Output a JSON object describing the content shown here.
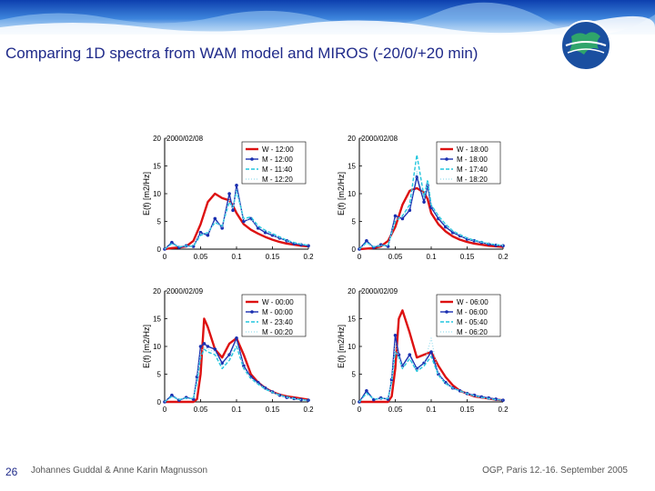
{
  "slide": {
    "title": "Comparing 1D spectra from WAM model and MIROS (-20/0/+20 min)",
    "page_number": "26",
    "authors": "Johannes Guddal & Anne Karin Magnusson",
    "conference": "OGP, Paris 12.-16. September 2005"
  },
  "colors": {
    "wam": "#dd1111",
    "miros0": "#1a2fb0",
    "miros_minus": "#22c6dd",
    "miros_plus": "#99ddee",
    "title": "#1f2a8a"
  },
  "chart_data": [
    {
      "type": "line",
      "date": "2000/02/08",
      "xlabel": "",
      "ylabel": "E(f) [m2/Hz]",
      "xlim": [
        0,
        0.2
      ],
      "ylim": [
        0,
        20
      ],
      "xticks": [
        "0",
        "0.05",
        "0.1",
        "0.15",
        "0.2"
      ],
      "yticks": [
        "0",
        "5",
        "10",
        "15",
        "20"
      ],
      "x": [
        0.0,
        0.01,
        0.02,
        0.03,
        0.04,
        0.05,
        0.06,
        0.07,
        0.08,
        0.09,
        0.095,
        0.1,
        0.11,
        0.12,
        0.13,
        0.14,
        0.15,
        0.16,
        0.17,
        0.18,
        0.19,
        0.2
      ],
      "series": [
        {
          "name": "W - 12:00",
          "values": [
            0,
            0.2,
            0.3,
            0.5,
            1.5,
            4.5,
            8.5,
            10.0,
            9.2,
            8.8,
            7.8,
            6.5,
            4.5,
            3.5,
            2.8,
            2.2,
            1.7,
            1.3,
            1.0,
            0.8,
            0.6,
            0.5
          ]
        },
        {
          "name": "M - 12:00",
          "values": [
            0,
            1.2,
            0.3,
            0.6,
            0.5,
            3.0,
            2.5,
            5.5,
            3.8,
            10.0,
            7.0,
            11.5,
            5.0,
            5.5,
            3.8,
            3.0,
            2.5,
            2.0,
            1.5,
            1.0,
            0.8,
            0.6
          ]
        },
        {
          "name": "M - 11:40",
          "values": [
            0,
            1.0,
            0.4,
            0.6,
            0.5,
            2.5,
            3.0,
            4.8,
            4.2,
            8.5,
            7.5,
            10.5,
            5.5,
            5.8,
            4.2,
            3.4,
            2.8,
            2.2,
            1.6,
            1.2,
            0.9,
            0.7
          ]
        },
        {
          "name": "M - 12:20",
          "values": [
            0,
            0.8,
            0.5,
            0.5,
            0.7,
            2.8,
            2.8,
            5.0,
            4.0,
            9.0,
            7.2,
            10.8,
            5.2,
            5.4,
            4.0,
            3.2,
            2.6,
            2.0,
            1.5,
            1.1,
            0.9,
            0.7
          ]
        }
      ]
    },
    {
      "type": "line",
      "date": "2000/02/08",
      "xlabel": "",
      "ylabel": "E(f) [m2/Hz]",
      "xlim": [
        0,
        0.2
      ],
      "ylim": [
        0,
        20
      ],
      "xticks": [
        "0",
        "0.05",
        "0.1",
        "0.15",
        "0.2"
      ],
      "yticks": [
        "0",
        "5",
        "10",
        "15",
        "20"
      ],
      "x": [
        0.0,
        0.01,
        0.02,
        0.03,
        0.04,
        0.05,
        0.06,
        0.07,
        0.08,
        0.09,
        0.095,
        0.1,
        0.11,
        0.12,
        0.13,
        0.14,
        0.15,
        0.16,
        0.17,
        0.18,
        0.19,
        0.2
      ],
      "series": [
        {
          "name": "W - 18:00",
          "values": [
            0,
            0.1,
            0.2,
            0.5,
            1.5,
            4.0,
            8.0,
            10.5,
            11.0,
            10.2,
            9.0,
            6.5,
            4.5,
            3.2,
            2.3,
            1.7,
            1.3,
            1.0,
            0.8,
            0.6,
            0.5,
            0.4
          ]
        },
        {
          "name": "M - 18:00",
          "values": [
            0,
            1.5,
            0.3,
            0.8,
            0.5,
            6.0,
            5.5,
            7.0,
            13.0,
            8.5,
            11.5,
            7.5,
            5.5,
            4.0,
            3.0,
            2.4,
            1.8,
            1.5,
            1.2,
            0.9,
            0.7,
            0.6
          ]
        },
        {
          "name": "M - 17:40",
          "values": [
            0,
            1.2,
            0.4,
            0.6,
            0.7,
            5.0,
            6.0,
            8.0,
            17.0,
            9.5,
            12.5,
            8.0,
            6.0,
            4.5,
            3.3,
            2.6,
            2.0,
            1.6,
            1.3,
            1.0,
            0.8,
            0.7
          ]
        },
        {
          "name": "M - 18:20",
          "values": [
            0,
            1.0,
            0.5,
            0.7,
            0.6,
            5.5,
            5.8,
            7.5,
            14.0,
            9.0,
            12.0,
            7.8,
            5.8,
            4.3,
            3.2,
            2.5,
            1.9,
            1.5,
            1.2,
            1.0,
            0.8,
            0.6
          ]
        }
      ]
    },
    {
      "type": "line",
      "date": "2000/02/09",
      "xlabel": "",
      "ylabel": "E(f) [m2/Hz]",
      "xlim": [
        0,
        0.2
      ],
      "ylim": [
        0,
        20
      ],
      "xticks": [
        "0",
        "0.05",
        "0.1",
        "0.15",
        "0.2"
      ],
      "yticks": [
        "0",
        "5",
        "10",
        "15",
        "20"
      ],
      "x": [
        0.0,
        0.01,
        0.02,
        0.03,
        0.04,
        0.045,
        0.05,
        0.055,
        0.06,
        0.07,
        0.08,
        0.09,
        0.1,
        0.11,
        0.12,
        0.13,
        0.14,
        0.15,
        0.16,
        0.17,
        0.18,
        0.19,
        0.2
      ],
      "series": [
        {
          "name": "W - 00:00",
          "values": [
            0,
            0,
            0,
            0,
            0,
            0.5,
            5.0,
            15.0,
            13.5,
            9.5,
            8.0,
            10.5,
            11.5,
            8.5,
            5.0,
            3.5,
            2.5,
            1.8,
            1.3,
            1.0,
            0.8,
            0.6,
            0.4
          ]
        },
        {
          "name": "M - 00:00",
          "values": [
            0,
            1.2,
            0.3,
            0.8,
            0.5,
            4.5,
            10.0,
            10.5,
            10.0,
            9.5,
            7.0,
            8.5,
            11.5,
            6.5,
            4.5,
            3.5,
            2.5,
            1.8,
            1.2,
            0.8,
            0.6,
            0.4,
            0.3
          ]
        },
        {
          "name": "M - 23:40",
          "values": [
            0,
            1.0,
            0.4,
            0.7,
            0.6,
            3.5,
            8.0,
            9.5,
            9.0,
            8.5,
            6.0,
            7.5,
            10.0,
            6.0,
            4.2,
            3.2,
            2.3,
            1.7,
            1.2,
            0.9,
            0.6,
            0.4,
            0.3
          ]
        },
        {
          "name": "M - 00:20",
          "values": [
            0,
            0.8,
            0.5,
            0.6,
            0.7,
            4.0,
            9.0,
            9.8,
            9.5,
            9.0,
            6.5,
            8.0,
            10.8,
            6.2,
            4.3,
            3.3,
            2.4,
            1.8,
            1.2,
            0.8,
            0.6,
            0.4,
            0.3
          ]
        }
      ]
    },
    {
      "type": "line",
      "date": "2000/02/09",
      "xlabel": "",
      "ylabel": "E(f) [m2/Hz]",
      "xlim": [
        0,
        0.2
      ],
      "ylim": [
        0,
        20
      ],
      "xticks": [
        "0",
        "0.05",
        "0.1",
        "0.15",
        "0.2"
      ],
      "yticks": [
        "0",
        "5",
        "10",
        "15",
        "20"
      ],
      "x": [
        0.0,
        0.01,
        0.02,
        0.03,
        0.04,
        0.045,
        0.05,
        0.055,
        0.06,
        0.07,
        0.08,
        0.09,
        0.1,
        0.11,
        0.12,
        0.13,
        0.14,
        0.15,
        0.16,
        0.17,
        0.18,
        0.19,
        0.2
      ],
      "series": [
        {
          "name": "W - 06:00",
          "values": [
            0,
            0,
            0,
            0,
            0,
            1.0,
            6.0,
            15.0,
            16.5,
            12.5,
            8.0,
            8.5,
            9.0,
            6.5,
            4.5,
            3.0,
            2.0,
            1.5,
            1.0,
            0.8,
            0.6,
            0.4,
            0.3
          ]
        },
        {
          "name": "M - 06:00",
          "values": [
            0,
            2.0,
            0.4,
            0.7,
            0.5,
            4.0,
            12.0,
            8.5,
            6.5,
            8.5,
            6.0,
            7.0,
            9.0,
            5.0,
            3.5,
            2.5,
            2.0,
            1.5,
            1.2,
            0.9,
            0.7,
            0.5,
            0.3
          ]
        },
        {
          "name": "M - 05:40",
          "values": [
            0,
            1.6,
            0.5,
            0.6,
            0.6,
            3.5,
            9.0,
            8.0,
            6.0,
            7.8,
            5.5,
            6.5,
            8.2,
            4.8,
            3.3,
            2.5,
            2.0,
            1.5,
            1.1,
            0.8,
            0.6,
            0.4,
            0.3
          ]
        },
        {
          "name": "M - 06:20",
          "values": [
            0,
            1.3,
            0.6,
            0.6,
            0.7,
            3.8,
            10.5,
            8.2,
            6.2,
            8.0,
            5.8,
            6.8,
            11.5,
            4.9,
            3.4,
            2.5,
            2.0,
            1.5,
            1.1,
            0.8,
            0.6,
            0.4,
            0.3
          ]
        }
      ]
    }
  ]
}
